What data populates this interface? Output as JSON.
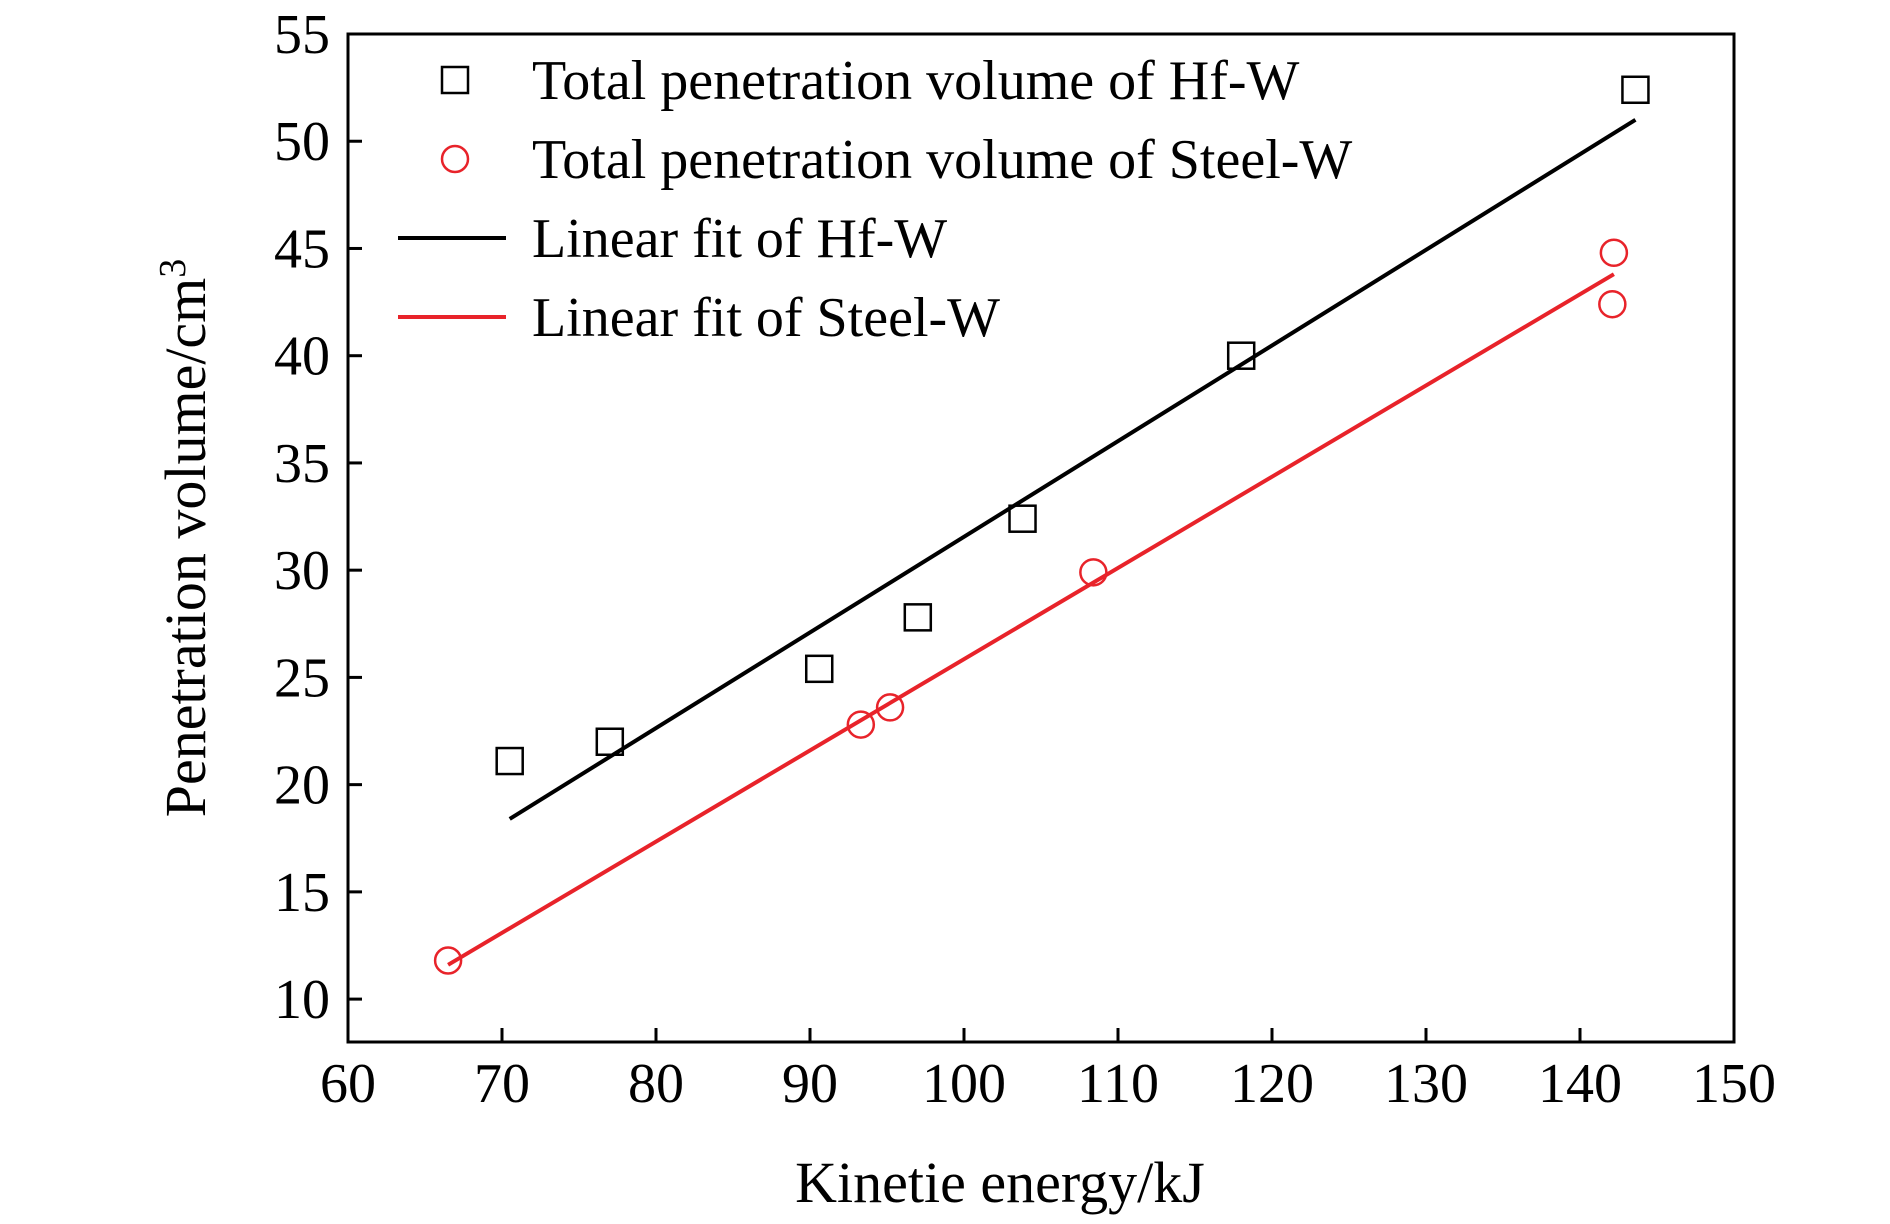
{
  "chart_data": {
    "type": "scatter",
    "xlabel": "Kinetie energy/kJ",
    "ylabel": "Penetration volume/cm",
    "ylabel_sup": "3",
    "xlim": [
      60,
      150
    ],
    "ylim": [
      8,
      55
    ],
    "xticks": [
      60,
      70,
      80,
      90,
      100,
      110,
      120,
      130,
      140,
      150
    ],
    "yticks": [
      10,
      15,
      20,
      25,
      30,
      35,
      40,
      45,
      50,
      55
    ],
    "grid": false,
    "legend_position": "top-left",
    "series": [
      {
        "name": "Total penetration volume of Hf-W",
        "kind": "scatter",
        "marker": "square",
        "color": "#000000",
        "points": [
          [
            70.5,
            21.1
          ],
          [
            77.0,
            22.0
          ],
          [
            90.6,
            25.4
          ],
          [
            97.0,
            27.8
          ],
          [
            103.8,
            32.4
          ],
          [
            118.0,
            40.0
          ],
          [
            143.6,
            52.4
          ]
        ]
      },
      {
        "name": "Total penetration volume of Steel-W",
        "kind": "scatter",
        "marker": "circle",
        "color": "#e8232a",
        "points": [
          [
            66.5,
            11.8
          ],
          [
            93.3,
            22.8
          ],
          [
            95.2,
            23.6
          ],
          [
            108.4,
            29.9
          ],
          [
            142.2,
            44.8
          ],
          [
            142.1,
            42.4
          ]
        ]
      },
      {
        "name": "Linear fit of Hf-W",
        "kind": "line",
        "color": "#000000",
        "points": [
          [
            70.5,
            18.4
          ],
          [
            143.6,
            51.0
          ]
        ]
      },
      {
        "name": "Linear fit of Steel-W",
        "kind": "line",
        "color": "#e8232a",
        "points": [
          [
            66.5,
            11.6
          ],
          [
            142.2,
            43.8
          ]
        ]
      }
    ]
  }
}
